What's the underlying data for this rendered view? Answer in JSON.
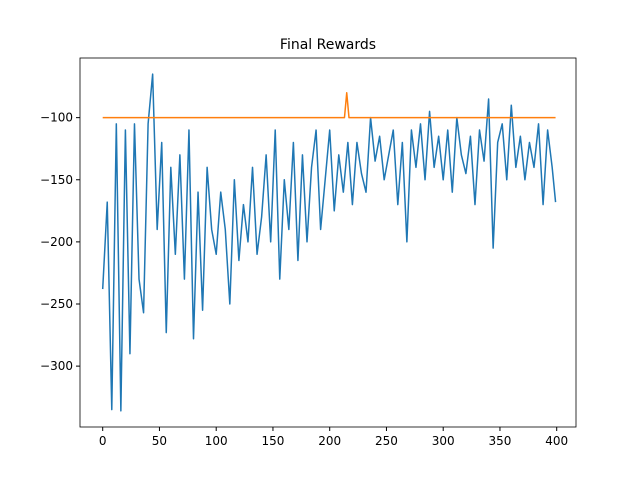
{
  "chart_data": {
    "type": "line",
    "title": "Final Rewards",
    "xlim": [
      -20,
      417
    ],
    "ylim": [
      -349,
      -52
    ],
    "xticks": [
      0,
      50,
      100,
      150,
      200,
      250,
      300,
      350,
      400
    ],
    "yticks": [
      {
        "value": -300,
        "label": "−300"
      },
      {
        "value": -250,
        "label": "−250"
      },
      {
        "value": -200,
        "label": "−200"
      },
      {
        "value": -150,
        "label": "−150"
      },
      {
        "value": -100,
        "label": "−100"
      }
    ],
    "series": [
      {
        "color": "#1f77b4",
        "x": [
          0,
          4,
          8,
          12,
          16,
          20,
          24,
          28,
          32,
          36,
          40,
          44,
          48,
          52,
          56,
          60,
          64,
          68,
          72,
          76,
          80,
          84,
          88,
          92,
          96,
          100,
          104,
          108,
          112,
          116,
          120,
          124,
          128,
          132,
          136,
          140,
          144,
          148,
          152,
          156,
          160,
          164,
          168,
          172,
          176,
          180,
          184,
          188,
          192,
          196,
          200,
          204,
          208,
          212,
          216,
          220,
          224,
          228,
          232,
          236,
          240,
          244,
          248,
          252,
          256,
          260,
          264,
          268,
          272,
          276,
          280,
          284,
          288,
          292,
          296,
          300,
          304,
          308,
          312,
          316,
          320,
          324,
          328,
          332,
          336,
          340,
          344,
          348,
          352,
          356,
          360,
          364,
          368,
          372,
          376,
          380,
          384,
          388,
          392,
          396,
          399
        ],
        "values": [
          -238,
          -168,
          -335,
          -105,
          -336,
          -110,
          -290,
          -105,
          -230,
          -257,
          -105,
          -65,
          -190,
          -120,
          -273,
          -140,
          -210,
          -130,
          -230,
          -110,
          -278,
          -160,
          -255,
          -140,
          -190,
          -210,
          -160,
          -190,
          -250,
          -150,
          -215,
          -170,
          -200,
          -140,
          -210,
          -180,
          -130,
          -200,
          -110,
          -230,
          -150,
          -190,
          -120,
          -215,
          -130,
          -200,
          -140,
          -110,
          -190,
          -150,
          -110,
          -175,
          -130,
          -160,
          -120,
          -170,
          -120,
          -145,
          -160,
          -100,
          -135,
          -115,
          -150,
          -130,
          -110,
          -170,
          -120,
          -200,
          -110,
          -140,
          -105,
          -150,
          -95,
          -140,
          -115,
          -150,
          -110,
          -160,
          -100,
          -130,
          -145,
          -115,
          -170,
          -110,
          -135,
          -85,
          -205,
          -120,
          -105,
          -150,
          -90,
          -140,
          -115,
          -150,
          -120,
          -140,
          -105,
          -170,
          -110,
          -140,
          -168
        ]
      },
      {
        "color": "#ff7f0e",
        "x": [
          0,
          213,
          215,
          217,
          399
        ],
        "values": [
          -100,
          -100,
          -80,
          -100,
          -100
        ]
      }
    ]
  }
}
